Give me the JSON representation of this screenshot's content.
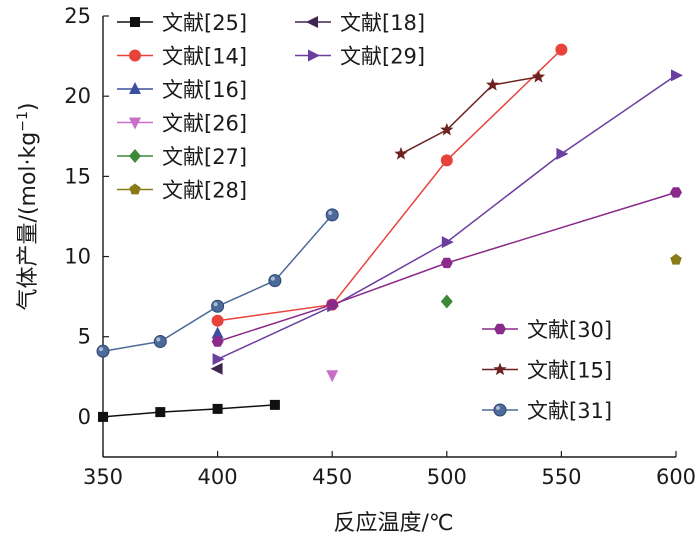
{
  "chart_data": {
    "type": "scatter",
    "xlabel": "反应温度/℃",
    "ylabel": "气体产量/(mol·kg",
    "ylabel_sup": "−1",
    "ylabel_close": ")",
    "xlim": [
      350,
      600
    ],
    "ylim": [
      -2.5,
      25
    ],
    "xticks": [
      350,
      400,
      450,
      500,
      550,
      600
    ],
    "yticks": [
      0,
      5,
      10,
      15,
      20,
      25
    ],
    "grid": false,
    "legend_placement": "top-left, center-top, and right-middle groups",
    "series": [
      {
        "name": "文献[25]",
        "color": "#111111",
        "marker": "square",
        "lines": true,
        "x": [
          350,
          375,
          400,
          425
        ],
        "y": [
          0,
          0.3,
          0.5,
          0.75
        ]
      },
      {
        "name": "文献[14]",
        "color": "#e8433a",
        "marker": "circle",
        "lines": true,
        "x": [
          400,
          450,
          500,
          550
        ],
        "y": [
          6.0,
          7.0,
          16.0,
          22.9
        ]
      },
      {
        "name": "文献[16]",
        "color": "#3b4fa0",
        "marker": "triangle-up",
        "lines": false,
        "x": [
          400
        ],
        "y": [
          5.2
        ]
      },
      {
        "name": "文献[26]",
        "color": "#c86fc8",
        "marker": "triangle-down",
        "lines": false,
        "x": [
          450
        ],
        "y": [
          2.6
        ]
      },
      {
        "name": "文献[27]",
        "color": "#3a8a3a",
        "marker": "diamond",
        "lines": false,
        "x": [
          500
        ],
        "y": [
          7.2
        ]
      },
      {
        "name": "文献[28]",
        "color": "#8a7a18",
        "marker": "pentagon",
        "lines": false,
        "x": [
          600
        ],
        "y": [
          9.8
        ]
      },
      {
        "name": "文献[18]",
        "color": "#3e2550",
        "marker": "triangle-left",
        "lines": false,
        "x": [
          400
        ],
        "y": [
          3.0
        ]
      },
      {
        "name": "文献[29]",
        "color": "#6a3fa0",
        "marker": "triangle-right",
        "lines": true,
        "x": [
          400,
          450,
          500,
          550,
          600
        ],
        "y": [
          3.6,
          6.9,
          10.9,
          16.4,
          21.3
        ]
      },
      {
        "name": "文献[30]",
        "color": "#8a2a8a",
        "marker": "hexagon",
        "lines": true,
        "x": [
          400,
          450,
          500,
          600
        ],
        "y": [
          4.7,
          7.0,
          9.6,
          14.0
        ]
      },
      {
        "name": "文献[15]",
        "color": "#6e2222",
        "marker": "star",
        "lines": true,
        "x": [
          480,
          500,
          520,
          540
        ],
        "y": [
          16.4,
          17.9,
          20.7,
          21.2
        ]
      },
      {
        "name": "文献[31]",
        "color": "#4c6a9a",
        "marker": "sphere",
        "lines": true,
        "x": [
          350,
          375,
          400,
          425,
          450
        ],
        "y": [
          4.1,
          4.7,
          6.9,
          8.5,
          12.6
        ]
      }
    ],
    "legend_groups": [
      {
        "series_index": [
          0,
          1,
          2,
          3,
          4,
          5
        ]
      },
      {
        "series_index": [
          6,
          7
        ]
      },
      {
        "series_index": [
          8,
          9,
          10
        ]
      }
    ]
  }
}
